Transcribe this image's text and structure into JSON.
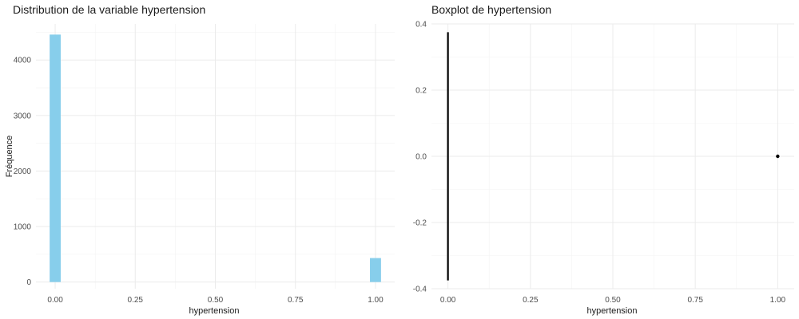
{
  "chart_data": [
    {
      "type": "bar",
      "title": "Distribution de la variable hypertension",
      "xlabel": "hypertension",
      "ylabel": "Fréquence",
      "xlim": [
        -0.06,
        1.06
      ],
      "ylim": [
        -120,
        4650
      ],
      "x_ticks": [
        0,
        0.25,
        0.5,
        0.75,
        1
      ],
      "x_tick_labels": [
        "0.00",
        "0.25",
        "0.50",
        "0.75",
        "1.00"
      ],
      "y_ticks": [
        0,
        1000,
        2000,
        3000,
        4000
      ],
      "y_tick_labels": [
        "0",
        "1000",
        "2000",
        "3000",
        "4000"
      ],
      "bins": [
        {
          "x": 0,
          "value": 4458
        },
        {
          "x": 1,
          "value": 432
        }
      ],
      "bin_width": 0.0345,
      "bar_color": "#87CEEB",
      "grid": true,
      "legend": "none"
    },
    {
      "type": "boxplot",
      "title": "Boxplot de hypertension",
      "xlabel": "hypertension",
      "ylabel": "",
      "xlim": [
        -0.05,
        1.05
      ],
      "ylim": [
        -0.4,
        0.4
      ],
      "x_ticks": [
        0,
        0.25,
        0.5,
        0.75,
        1
      ],
      "x_tick_labels": [
        "0.00",
        "0.25",
        "0.50",
        "0.75",
        "1.00"
      ],
      "y_ticks": [
        -0.4,
        -0.2,
        0,
        0.2,
        0.4
      ],
      "y_tick_labels": [
        "-0.4",
        "-0.2",
        "0.0",
        "0.2",
        "0.4"
      ],
      "box": {
        "min": 0,
        "q1": 0,
        "median": 0,
        "q3": 0,
        "max": 0,
        "half_width": 0.375
      },
      "outliers": [
        {
          "x": 1,
          "y": 0
        }
      ],
      "box_color": "#000000",
      "grid": true,
      "legend": "none"
    }
  ]
}
